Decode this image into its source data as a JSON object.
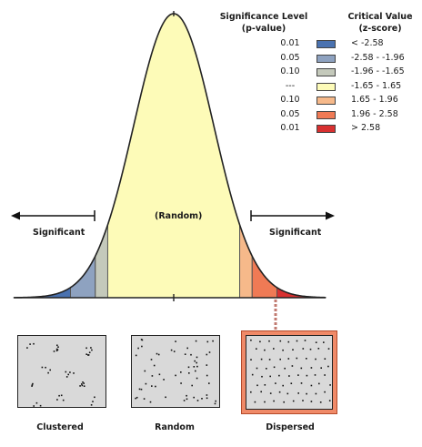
{
  "legend": {
    "header_p_line1": "Significance Level",
    "header_p_line2": "(p-value)",
    "header_z_line1": "Critical Value",
    "header_z_line2": "(z-score)",
    "rows": [
      {
        "p": "0.01",
        "z": "< -2.58",
        "color": "#4a72b0"
      },
      {
        "p": "0.05",
        "z": "-2.58 - -1.96",
        "color": "#8ea2c0"
      },
      {
        "p": "0.10",
        "z": "-1.96 - -1.65",
        "color": "#c4c9bb"
      },
      {
        "p": "---",
        "z": "-1.65 - 1.65",
        "color": "#fdfbb8"
      },
      {
        "p": "0.10",
        "z": "1.65 - 1.96",
        "color": "#f6b98a"
      },
      {
        "p": "0.05",
        "z": "1.96 - 2.58",
        "color": "#ef7a55"
      },
      {
        "p": "0.01",
        "z": "> 2.58",
        "color": "#d83030"
      }
    ]
  },
  "curve": {
    "center_label": "(Random)",
    "left_label": "Significant",
    "right_label": "Significant",
    "outline_color": "#222222",
    "z_breaks": [
      -2.58,
      -1.96,
      -1.65,
      1.65,
      1.96,
      2.58
    ]
  },
  "patterns": [
    {
      "caption": "Clustered",
      "pattern": "clustered",
      "highlighted": false
    },
    {
      "caption": "Random",
      "pattern": "random",
      "highlighted": false
    },
    {
      "caption": "Dispersed",
      "pattern": "dispersed",
      "highlighted": true
    }
  ],
  "highlight_color": "#f08a68",
  "connector_color": "#c07a70"
}
